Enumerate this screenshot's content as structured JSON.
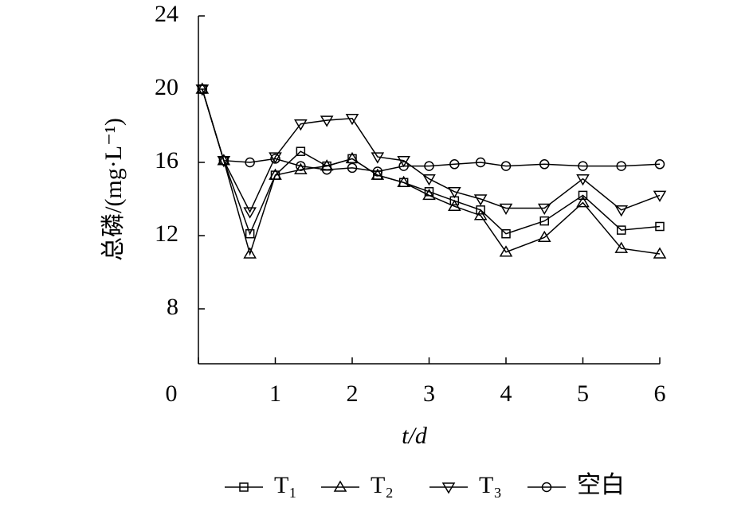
{
  "chart_data": {
    "type": "line",
    "x_label": "t/d",
    "y_label": "总磷/(mg·L⁻¹)",
    "x": [
      0.05,
      0.33,
      0.67,
      1,
      1.33,
      1.67,
      2,
      2.33,
      2.67,
      3,
      3.33,
      3.67,
      4,
      4.5,
      5,
      5.5,
      6
    ],
    "series": [
      {
        "name": "T₁",
        "marker": "square",
        "color": "#000000",
        "values": [
          20,
          16.1,
          12.1,
          15.3,
          16.6,
          15.8,
          16.2,
          15.3,
          14.9,
          14.4,
          13.9,
          13.4,
          12.1,
          12.8,
          14.2,
          12.3,
          12.5
        ]
      },
      {
        "name": "T₂",
        "marker": "triangle-up",
        "color": "#000000",
        "values": [
          20,
          16.1,
          11.0,
          15.3,
          15.6,
          15.8,
          16.2,
          15.3,
          14.9,
          14.2,
          13.6,
          13.1,
          11.1,
          11.9,
          13.8,
          11.3,
          11.0
        ]
      },
      {
        "name": "T₃",
        "marker": "triangle-down",
        "color": "#000000",
        "values": [
          20,
          16.1,
          13.3,
          16.3,
          18.1,
          18.3,
          18.4,
          16.3,
          16.1,
          15.1,
          14.4,
          14.0,
          13.5,
          13.5,
          15.1,
          13.4,
          14.2
        ]
      },
      {
        "name": "空白",
        "marker": "circle",
        "color": "#000000",
        "values": [
          20,
          16.1,
          16.0,
          16.2,
          15.8,
          15.6,
          15.7,
          15.5,
          15.8,
          15.8,
          15.9,
          16.0,
          15.8,
          15.9,
          15.8,
          15.8,
          15.9
        ]
      }
    ],
    "xlim": [
      0,
      6
    ],
    "xticks": [
      0,
      1,
      2,
      3,
      4,
      5,
      6
    ],
    "ylim": [
      5,
      24
    ],
    "yticks": [
      8,
      12,
      16,
      20,
      24
    ],
    "grid": false,
    "legend": "bottom"
  }
}
